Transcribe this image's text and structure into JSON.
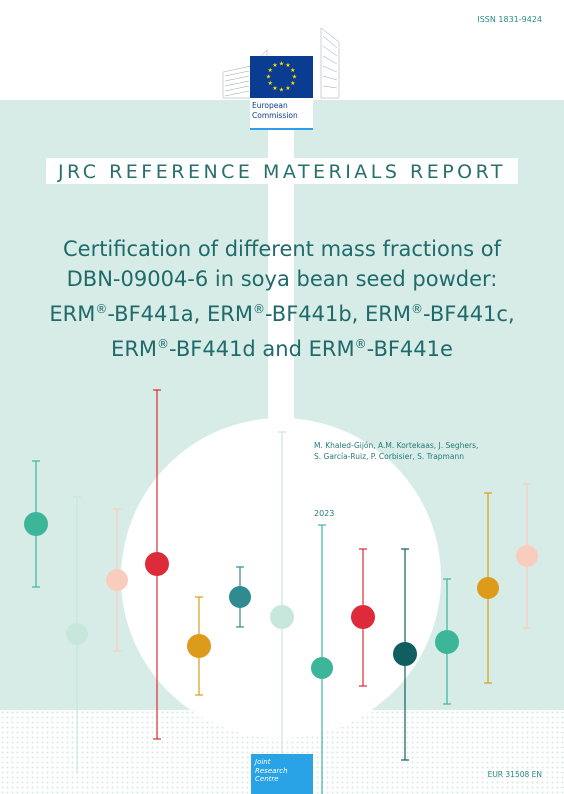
{
  "issn": "ISSN 1831-9424",
  "logo": {
    "line1": "European",
    "line2": "Commission",
    "flag_color": "#0a3d91",
    "star_color": "#ffdd00"
  },
  "report_title": "JRC REFERENCE MATERIALS REPORT",
  "title": {
    "line1": "Certification of different mass fractions of",
    "line2": "DBN-09004-6 in soya bean seed powder:",
    "erm": "ERM",
    "reg": "®",
    "codes": [
      "-BF441a, ",
      "-BF441b, ",
      "-BF441c,",
      "-BF441d and ",
      "-BF441e"
    ]
  },
  "authors": {
    "line1": "M. Khaled-Gijón, A.M. Kortekaas, J. Seghers,",
    "line2": "S. García-Ruiz, P. Corbisier, S. Trapmann"
  },
  "year": "2023",
  "jrc": {
    "line1": "Joint",
    "line2": "Research",
    "line3": "Centre",
    "color": "#29a3e5"
  },
  "eur": "EUR 31508 EN",
  "colors": {
    "band": "#d8ece7",
    "title": "#1f6a6b",
    "teal": "#3db598",
    "mint": "#c7e7dc",
    "peach": "#f9cdbe",
    "red": "#dd2b3a",
    "orange": "#dc9b1b",
    "steel": "#2e8c90",
    "dark_teal": "#115e60"
  }
}
